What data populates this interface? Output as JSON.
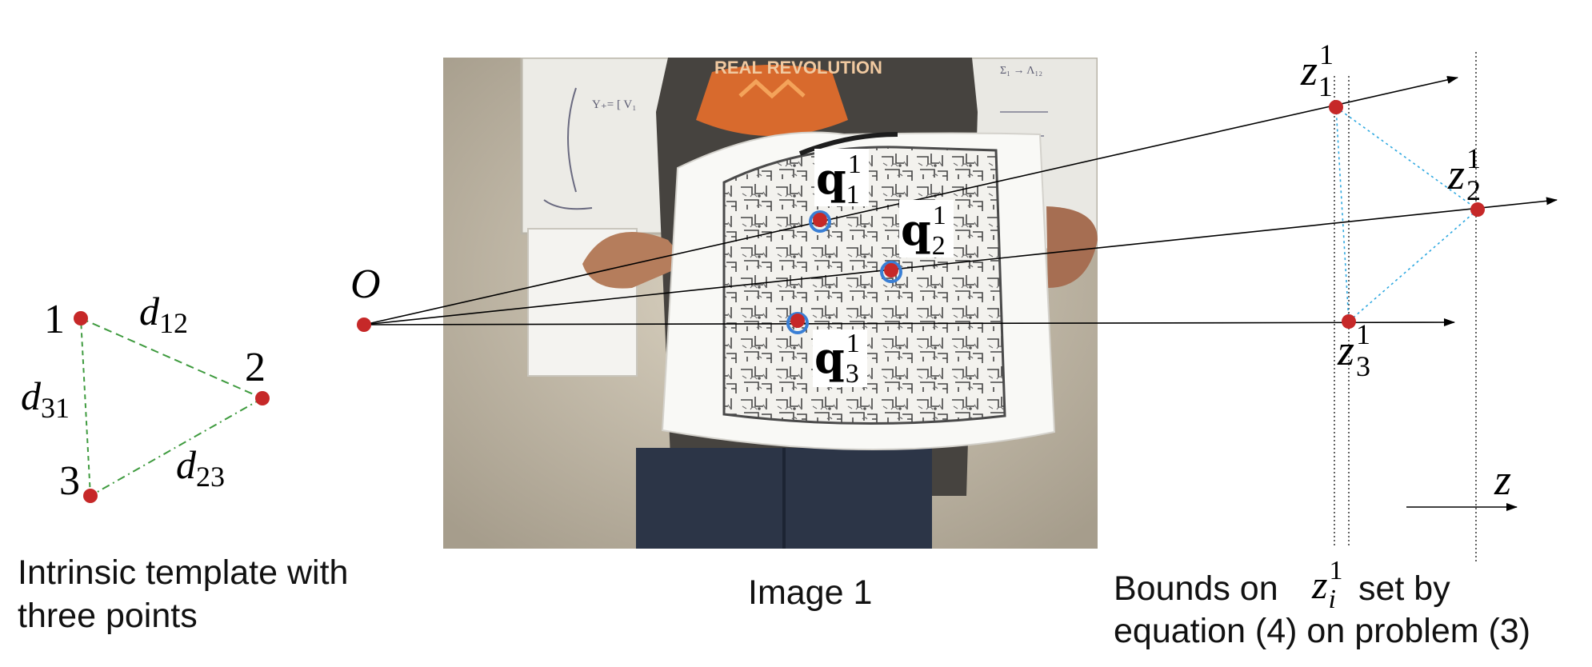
{
  "template": {
    "points": [
      "1",
      "2",
      "3"
    ],
    "distances": [
      {
        "base": "d",
        "sub": "12"
      },
      {
        "base": "d",
        "sub": "31"
      },
      {
        "base": "d",
        "sub": "23"
      }
    ],
    "caption_line1": "Intrinsic template with",
    "caption_line2": "three points"
  },
  "origin": {
    "label": "O"
  },
  "image": {
    "caption": "Image 1",
    "projections": [
      {
        "base": "q",
        "sub": "1",
        "sup": "1"
      },
      {
        "base": "q",
        "sub": "2",
        "sup": "1"
      },
      {
        "base": "q",
        "sub": "3",
        "sup": "1"
      }
    ],
    "photo_text": {
      "shirt": "REAL REVOLUTION",
      "board_left": "Y₊= [ V₁",
      "board_right": "Σ₁ → Λ₁₂"
    }
  },
  "depth": {
    "points": [
      {
        "base": "z",
        "sub": "1",
        "sup": "1"
      },
      {
        "base": "z",
        "sub": "2",
        "sup": "1"
      },
      {
        "base": "z",
        "sub": "3",
        "sup": "1"
      }
    ],
    "axis": {
      "base": "z"
    },
    "caption_prefix": "Bounds on",
    "caption_symbol": {
      "base": "z",
      "sub": "i",
      "sup": "1"
    },
    "caption_suffix": "set by",
    "caption_line2": "equation (4) on problem (3)"
  },
  "colors": {
    "point": "#c62828",
    "projection_ring": "#3a7fd5",
    "template_edge": "#3f9b3f",
    "depth_edge": "#2ea8e0",
    "ray": "#000000"
  }
}
